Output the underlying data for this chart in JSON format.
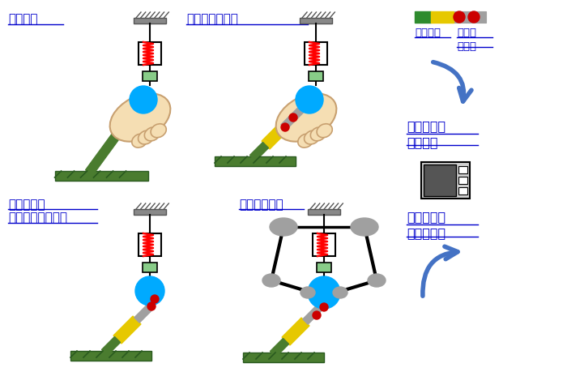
{
  "bg_color": "#ffffff",
  "text_color": "#0000cc",
  "label_polish": "磨き作業",
  "label_measure": "磨き作業の計測",
  "label_spring": "機械式バネ",
  "label_spring2": "（従来研究例１）",
  "label_robot": "磨きロボット",
  "label_sensor1": "カセンサ",
  "label_sensor2": "加速度\nセンサ",
  "label_feature": "磨き技能の\n特徴抽出",
  "label_robotize": "磨き技能の\nロボット化",
  "spring_color": "#ff0000",
  "hand_color": "#f5deb3",
  "hand_edge": "#c8a070",
  "ball_color": "#00aaff",
  "tool_green": "#4a7c2f",
  "tool_yellow": "#e6c800",
  "tool_gray": "#a0a0a0",
  "ground_color": "#4a7c2f",
  "robot_gray": "#a0a0a0",
  "arrow_color": "#4472c4",
  "sensor_green": "#2e8b2e",
  "sensor_yellow": "#e6c800",
  "sensor_red": "#cc0000",
  "sensor_gray": "#a0a0a0",
  "red_dot": "#cc0000",
  "box_face": "#ffffff",
  "box_edge": "#000000",
  "small_box_face": "#88cc88",
  "hatch_color": "#888888",
  "ground_hatch": "#2a5a1f"
}
